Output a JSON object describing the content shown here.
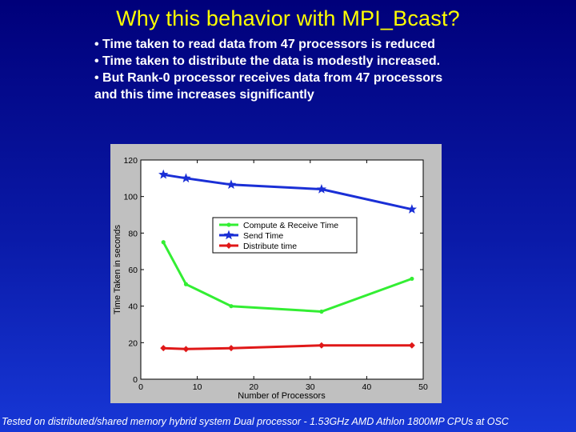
{
  "slide": {
    "title": "Why this behavior with MPI_Bcast?",
    "bullets": [
      "• Time taken to read data from 47 processors is reduced",
      "• Time taken to distribute the data is modestly increased.",
      "• But Rank-0 processor receives data from 47 processors",
      "and this time increases significantly"
    ],
    "footnote": "Tested on distributed/shared memory hybrid system Dual processor - 1.53GHz AMD Athlon 1800MP CPUs at OSC"
  },
  "colors": {
    "background_top": "#00007a",
    "background_bottom": "#1737d6",
    "title": "#ffff00",
    "text": "#ffffff",
    "plot_frame": "#c0c0c0",
    "plot_area": "#ffffff"
  },
  "chart_data": {
    "type": "line",
    "title": "",
    "xlabel": "Number of Processors",
    "ylabel": "Time Taken in seconds",
    "xlim": [
      0,
      50
    ],
    "ylim": [
      0,
      120
    ],
    "xticks": [
      0,
      10,
      20,
      30,
      40,
      50
    ],
    "yticks": [
      0,
      20,
      40,
      60,
      80,
      100,
      120
    ],
    "grid": false,
    "legend_position": "center-right",
    "series": [
      {
        "name": "Compute & Receive Time",
        "color": "#33ee33",
        "marker": "dot",
        "x": [
          4,
          8,
          16,
          32,
          48
        ],
        "y": [
          75,
          52,
          40,
          37,
          55
        ]
      },
      {
        "name": "Send Time",
        "color": "#1a2fd6",
        "marker": "star",
        "x": [
          4,
          8,
          16,
          32,
          48
        ],
        "y": [
          112,
          110,
          106.5,
          104,
          93
        ]
      },
      {
        "name": "Distribute time",
        "color": "#e01818",
        "marker": "diamond",
        "x": [
          4,
          8,
          16,
          32,
          48
        ],
        "y": [
          17,
          16.5,
          17,
          18.5,
          18.5
        ]
      }
    ]
  }
}
